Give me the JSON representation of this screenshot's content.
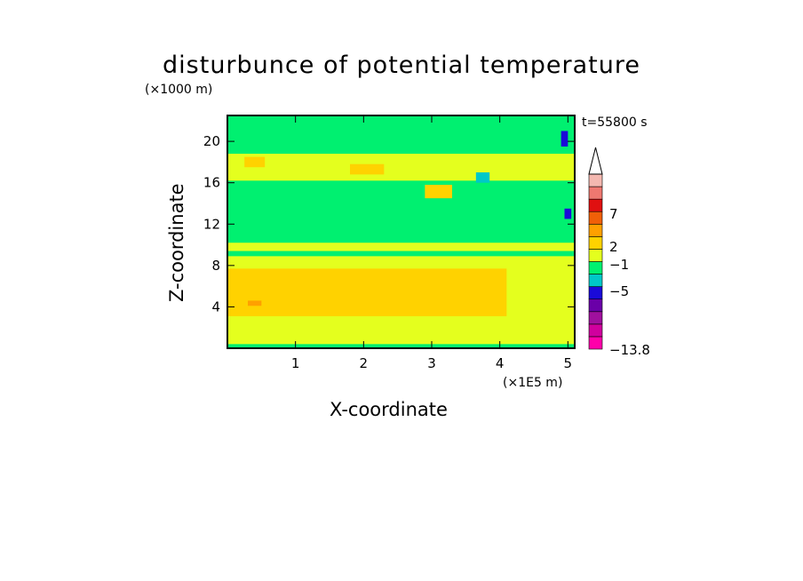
{
  "chart_data": {
    "type": "heatmap",
    "title": "disturbunce of potential temperature",
    "ylabel": "Z-coordinate",
    "xlabel": "X-coordinate",
    "y_unit": "(×1000 m)",
    "x_unit": "(×1E5 m)",
    "timestamp": "t=55800 s",
    "xlim": [
      0,
      5.1
    ],
    "ylim": [
      0,
      22.5
    ],
    "x_ticks": [
      {
        "value": 1,
        "label": "1"
      },
      {
        "value": 2,
        "label": "2"
      },
      {
        "value": 3,
        "label": "3"
      },
      {
        "value": 4,
        "label": "4"
      },
      {
        "value": 5,
        "label": "5"
      }
    ],
    "y_ticks": [
      {
        "value": 4,
        "label": "4"
      },
      {
        "value": 8,
        "label": "8"
      },
      {
        "value": 12,
        "label": "12"
      },
      {
        "value": 16,
        "label": "16"
      },
      {
        "value": 20,
        "label": "20"
      }
    ],
    "colorbar": {
      "colors": [
        "#ff00aa",
        "#d0009e",
        "#a0109e",
        "#6a00a8",
        "#1a0ad8",
        "#00c8c8",
        "#00f070",
        "#e4ff1e",
        "#ffd200",
        "#ffa000",
        "#f06008",
        "#e01010",
        "#ee7870",
        "#f4b8b0"
      ],
      "labels": [
        {
          "value": 7,
          "label": "7"
        },
        {
          "value": 2,
          "label": "2"
        },
        {
          "value": -1,
          "label": "−1"
        },
        {
          "value": -5,
          "label": "−5"
        },
        {
          "value": -13.8,
          "label": "−13.8"
        }
      ]
    },
    "regions": [
      {
        "x0": 0,
        "x1": 5.1,
        "y0": 0,
        "y1": 22.5,
        "value": 0.5,
        "color": "#e4ff1e"
      },
      {
        "x0": 0,
        "x1": 5.1,
        "y0": 10.2,
        "y1": 16.2,
        "value": -0.5,
        "color": "#00f070"
      },
      {
        "x0": 0,
        "x1": 5.1,
        "y0": 18.8,
        "y1": 22.5,
        "value": -0.5,
        "color": "#00f070"
      },
      {
        "x0": 0,
        "x1": 5.1,
        "y0": 8.9,
        "y1": 9.4,
        "value": -0.5,
        "color": "#00f070"
      },
      {
        "x0": 0,
        "x1": 5.1,
        "y0": 0.0,
        "y1": 0.4,
        "value": -0.5,
        "color": "#00f070"
      },
      {
        "x0": 0,
        "x1": 4.1,
        "y0": 3.1,
        "y1": 7.7,
        "value": 1.5,
        "color": "#ffd200"
      },
      {
        "x0": 0.3,
        "x1": 0.5,
        "y0": 4.1,
        "y1": 4.6,
        "value": 3.0,
        "color": "#ffa000"
      },
      {
        "x0": 1.8,
        "x1": 2.3,
        "y0": 16.8,
        "y1": 17.8,
        "value": 1.5,
        "color": "#ffd200"
      },
      {
        "x0": 2.9,
        "x1": 3.3,
        "y0": 14.5,
        "y1": 15.8,
        "value": 1.5,
        "color": "#ffd200"
      },
      {
        "x0": 0.25,
        "x1": 0.55,
        "y0": 17.5,
        "y1": 18.5,
        "value": 1.5,
        "color": "#ffd200"
      },
      {
        "x0": 3.65,
        "x1": 3.85,
        "y0": 16.0,
        "y1": 17.0,
        "value": -1.5,
        "color": "#00c8c8"
      },
      {
        "x0": 4.9,
        "x1": 5.0,
        "y0": 19.5,
        "y1": 21.0,
        "value": -5.0,
        "color": "#1a0ad8"
      },
      {
        "x0": 4.95,
        "x1": 5.05,
        "y0": 12.5,
        "y1": 13.5,
        "value": -5.0,
        "color": "#1a0ad8"
      }
    ]
  }
}
